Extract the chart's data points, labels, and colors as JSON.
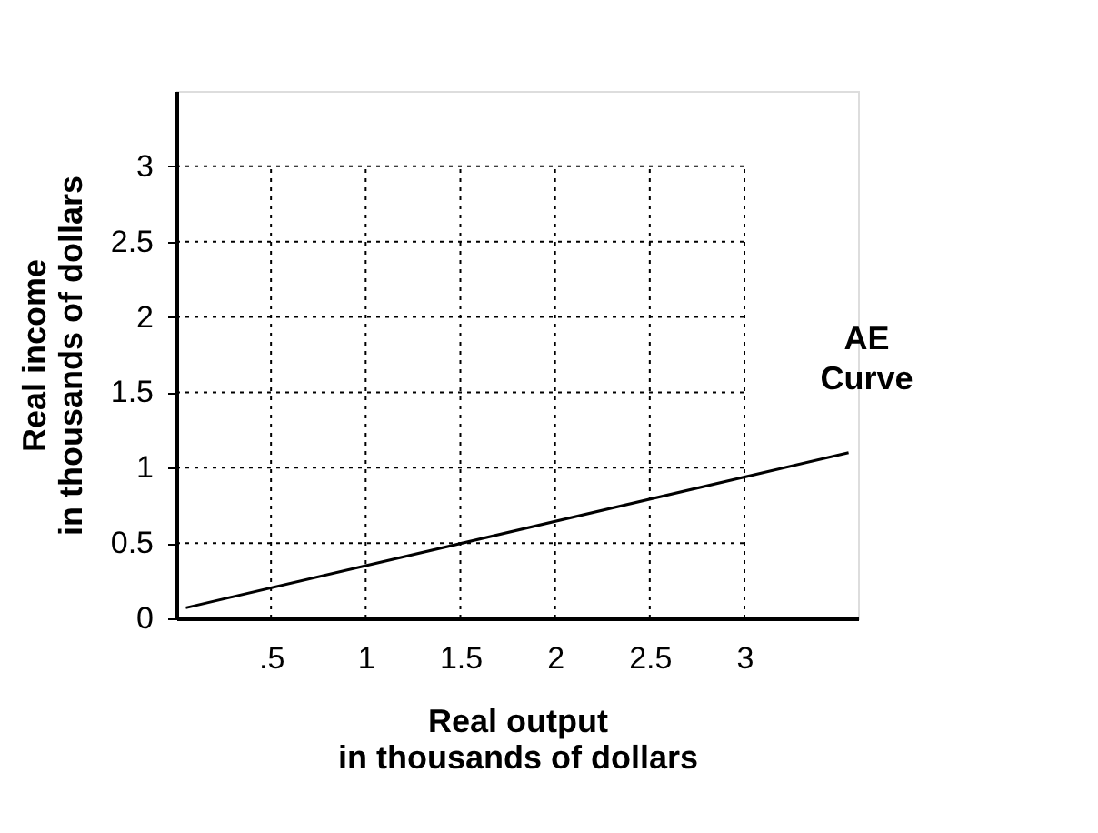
{
  "chart_data": {
    "type": "line",
    "xlabel": "Real output\nin thousands of dollars",
    "ylabel": "Real income\nin thousands of dollars",
    "series": [
      {
        "name": "AE Curve",
        "color": "#000000",
        "x": [
          0.05,
          3.55
        ],
        "values": [
          0.07,
          1.1
        ]
      }
    ],
    "xlim": [
      0,
      3.6
    ],
    "ylim": [
      0,
      3.5
    ],
    "xticks": [
      {
        "value": 0.5,
        "label": ".5"
      },
      1,
      1.5,
      2,
      2.5,
      3
    ],
    "yticks": [
      0,
      0.5,
      1,
      1.5,
      2,
      2.5,
      3
    ],
    "grid": true,
    "legend": false,
    "marker": "none",
    "line_style": "solid"
  }
}
